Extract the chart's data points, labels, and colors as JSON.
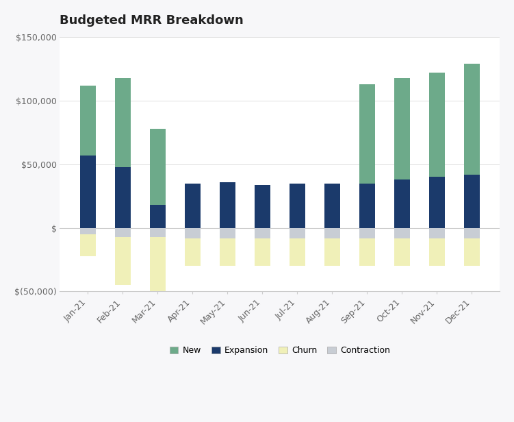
{
  "title": "Budgeted MRR Breakdown",
  "months": [
    "Jan-21",
    "Feb-21",
    "Mar-21",
    "Apr-21",
    "May-21",
    "Jun-21",
    "Jul-21",
    "Aug-21",
    "Sep-21",
    "Oct-21",
    "Nov-21",
    "Dec-21"
  ],
  "new": [
    55000,
    70000,
    60000,
    0,
    0,
    0,
    0,
    0,
    78000,
    80000,
    82000,
    87000
  ],
  "expansion": [
    57000,
    48000,
    18000,
    35000,
    36000,
    34000,
    35000,
    35000,
    35000,
    38000,
    40000,
    42000
  ],
  "contraction": [
    -5000,
    -7000,
    -7000,
    -8000,
    -8000,
    -8000,
    -8000,
    -8000,
    -8000,
    -8000,
    -8000,
    -8000
  ],
  "churn": [
    -17000,
    -38000,
    -45000,
    -22000,
    -22000,
    -22000,
    -22000,
    -22000,
    -22000,
    -22000,
    -22000,
    -22000
  ],
  "colors": {
    "new": "#6daa8a",
    "expansion": "#1b3a6b",
    "contraction": "#c8cdd4",
    "churn": "#f0f0b8"
  },
  "ylim": [
    -50000,
    150000
  ],
  "yticks": [
    -50000,
    0,
    50000,
    100000,
    150000
  ],
  "ytick_labels": [
    "$(50,000)",
    "$",
    "$50,000",
    "$100,000",
    "$150,000"
  ],
  "bg_color": "#f7f7f9",
  "plot_bg_color": "#ffffff",
  "legend_labels": [
    "New",
    "Expansion",
    "Churn",
    "Contraction"
  ],
  "legend_colors": [
    "#6daa8a",
    "#1b3a6b",
    "#f0f0b8",
    "#c8cdd4"
  ],
  "title_fontsize": 13,
  "tick_fontsize": 9,
  "legend_fontsize": 9,
  "bar_width": 0.45
}
